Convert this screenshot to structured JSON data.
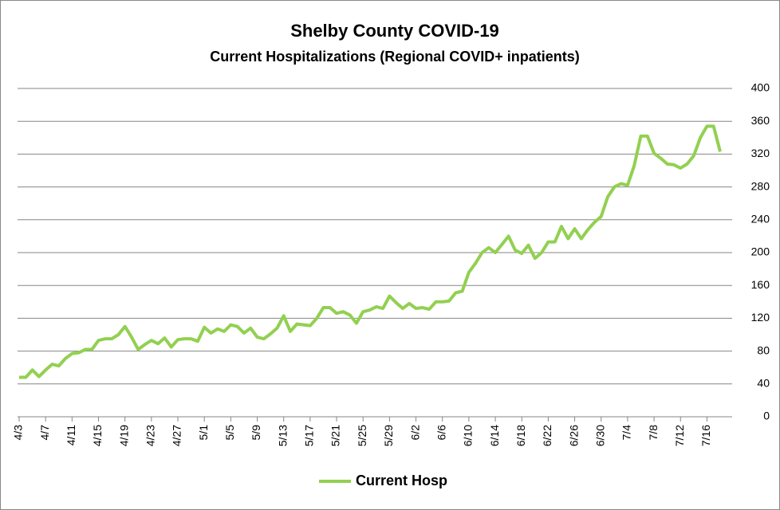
{
  "chart_data": {
    "type": "line",
    "title": "Shelby County COVID-19",
    "subtitle": "Current Hospitalizations (Regional COVID+ inpatients)",
    "categories": [
      "4/3",
      null,
      null,
      null,
      "4/7",
      null,
      null,
      null,
      "4/11",
      null,
      null,
      null,
      "4/15",
      null,
      null,
      null,
      "4/19",
      null,
      null,
      null,
      "4/23",
      null,
      null,
      null,
      "4/27",
      null,
      null,
      null,
      "5/1",
      null,
      null,
      null,
      "5/5",
      null,
      null,
      null,
      "5/9",
      null,
      null,
      null,
      "5/13",
      null,
      null,
      null,
      "5/17",
      null,
      null,
      null,
      "5/21",
      null,
      null,
      null,
      "5/25",
      null,
      null,
      null,
      "5/29",
      null,
      null,
      null,
      "6/2",
      null,
      null,
      null,
      "6/6",
      null,
      null,
      null,
      "6/10",
      null,
      null,
      null,
      "6/14",
      null,
      null,
      null,
      "6/18",
      null,
      null,
      null,
      "6/22",
      null,
      null,
      null,
      "6/26",
      null,
      null,
      null,
      "6/30",
      null,
      null,
      null,
      "7/4",
      null,
      null,
      null,
      "7/8",
      null,
      null,
      null,
      "7/12",
      null,
      null,
      null,
      "7/16",
      null,
      null
    ],
    "series": [
      {
        "name": "Current Hosp",
        "color": "#92d050",
        "values": [
          48,
          48,
          57,
          49,
          57,
          64,
          62,
          71,
          77,
          78,
          82,
          82,
          93,
          95,
          95,
          100,
          110,
          97,
          82,
          88,
          93,
          89,
          96,
          85,
          94,
          95,
          95,
          92,
          109,
          102,
          107,
          104,
          112,
          110,
          102,
          108,
          97,
          95,
          101,
          108,
          123,
          104,
          113,
          112,
          111,
          120,
          133,
          133,
          126,
          128,
          124,
          114,
          128,
          130,
          134,
          132,
          147,
          139,
          132,
          138,
          132,
          133,
          131,
          140,
          140,
          141,
          151,
          153,
          176,
          187,
          200,
          206,
          200,
          210,
          220,
          203,
          199,
          209,
          193,
          200,
          213,
          213,
          232,
          217,
          229,
          217,
          228,
          237,
          244,
          268,
          280,
          284,
          282,
          306,
          342,
          342,
          321,
          315,
          308,
          307,
          303,
          308,
          318,
          340,
          354,
          354,
          323
        ]
      }
    ],
    "ylim": [
      0,
      400
    ],
    "yticks": [
      0,
      40,
      80,
      120,
      160,
      200,
      240,
      280,
      320,
      360,
      400
    ],
    "grid": true,
    "legend": "bottom"
  }
}
